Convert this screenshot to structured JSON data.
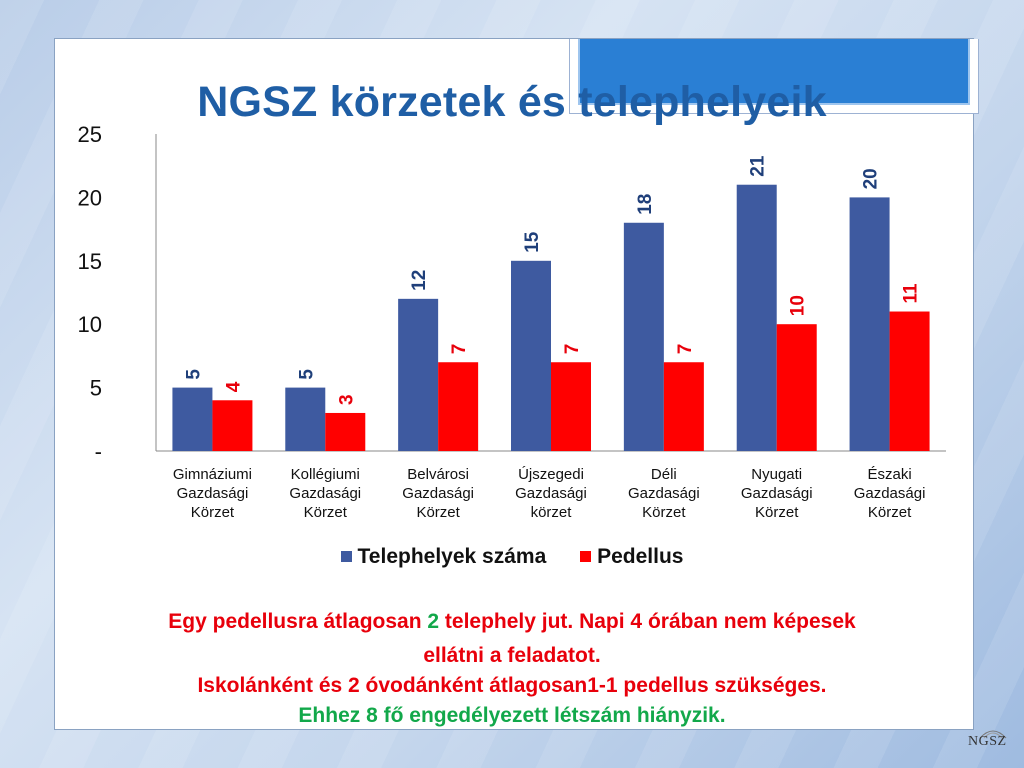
{
  "title": "NGSZ körzetek és telephelyeik",
  "colors": {
    "series1": "#3e5aa0",
    "series2": "#ff0000",
    "title": "#1f5ea5",
    "note_red": "#e8000b",
    "note_green": "#12a84a"
  },
  "chart_data": {
    "type": "bar",
    "categories": [
      [
        "Gimnáziumi",
        "Gazdasági",
        "Körzet"
      ],
      [
        "Kollégiumi",
        "Gazdasági",
        "Körzet"
      ],
      [
        "Belvárosi",
        "Gazdasági",
        "Körzet"
      ],
      [
        "Újszegedi",
        "Gazdasági",
        "körzet"
      ],
      [
        "Déli",
        "Gazdasági",
        "Körzet"
      ],
      [
        "Nyugati",
        "Gazdasági",
        "Körzet"
      ],
      [
        "Északi",
        "Gazdasági",
        "Körzet"
      ]
    ],
    "series": [
      {
        "name": "Telephelyek száma",
        "values": [
          5,
          5,
          12,
          15,
          18,
          21,
          20
        ],
        "color": "#3e5aa0",
        "label_color": "#1f3f7a"
      },
      {
        "name": "Pedellus",
        "values": [
          4,
          3,
          7,
          7,
          7,
          10,
          11
        ],
        "color": "#ff0000",
        "label_color": "#e8000b"
      }
    ],
    "yticks": [
      "-",
      "5",
      "10",
      "15",
      "20",
      "25"
    ],
    "ylim": [
      0,
      25
    ],
    "legend_position": "bottom",
    "grid": false
  },
  "notes": {
    "line1_a": "Egy pedellusra átlagosan ",
    "line1_b": "2",
    "line1_c": " telephely jut. Napi 4 órában nem képesek",
    "line2": "ellátni a feladatot.",
    "line3": "Iskolánként és 2 óvodánként átlagosan1-1 pedellus szükséges.",
    "line4": "Ehhez 8 fő engedélyezett létszám hiányzik."
  },
  "logo_text": "NGSZ"
}
